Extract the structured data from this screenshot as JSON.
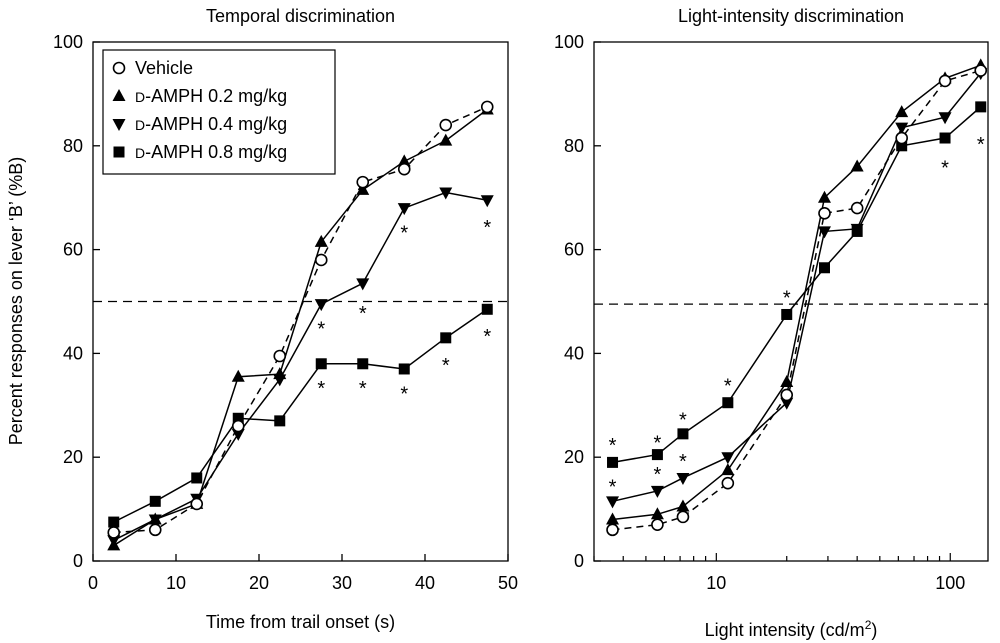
{
  "ylabel": "Percent responses on lever ‘B’ (%B)",
  "legend": {
    "placement": "top-left",
    "entries": [
      {
        "prefix": "",
        "label": "Vehicle",
        "marker": "circle-open"
      },
      {
        "prefix": "D",
        "label": "-AMPH 0.2 mg/kg",
        "marker": "triangle-up"
      },
      {
        "prefix": "D",
        "label": "-AMPH 0.4 mg/kg",
        "marker": "triangle-down"
      },
      {
        "prefix": "D",
        "label": "-AMPH 0.8 mg/kg",
        "marker": "square"
      }
    ]
  },
  "chart_data": [
    {
      "type": "line",
      "title": "Temporal discrimination",
      "xlabel": "Time from trail onset (s)",
      "xscale": "linear",
      "xlim": [
        0,
        50
      ],
      "ylim": [
        0,
        100
      ],
      "xticks": [
        0,
        10,
        20,
        30,
        40,
        50
      ],
      "yticks": [
        0,
        20,
        40,
        60,
        80,
        100
      ],
      "reference_line_y": 50,
      "x": [
        2.5,
        7.5,
        12.5,
        17.5,
        22.5,
        27.5,
        32.5,
        37.5,
        42.5,
        47.5
      ],
      "series": [
        {
          "name": "Vehicle",
          "marker": "circle-open",
          "dash": true,
          "values": [
            5.5,
            6,
            11,
            26,
            39.5,
            58,
            73,
            75.5,
            84,
            87.5
          ]
        },
        {
          "name": "D-AMPH 0.2 mg/kg",
          "marker": "triangle-up",
          "dash": false,
          "values": [
            3,
            8,
            11,
            35.5,
            36,
            61.5,
            71.5,
            77,
            81,
            87
          ]
        },
        {
          "name": "D-AMPH 0.4 mg/kg",
          "marker": "triangle-down",
          "dash": false,
          "values": [
            4,
            8,
            12,
            24.5,
            35,
            49.5,
            53.5,
            68,
            71,
            69.5
          ]
        },
        {
          "name": "D-AMPH 0.8 mg/kg",
          "marker": "square",
          "dash": false,
          "values": [
            7.5,
            11.5,
            16,
            27.5,
            27,
            38,
            38,
            37,
            43,
            48.5
          ]
        }
      ],
      "annotations": [
        {
          "text": "*",
          "x": 27.5,
          "y": 45
        },
        {
          "text": "*",
          "x": 27.5,
          "y": 33.5
        },
        {
          "text": "*",
          "x": 32.5,
          "y": 48
        },
        {
          "text": "*",
          "x": 32.5,
          "y": 33.5
        },
        {
          "text": "*",
          "x": 37.5,
          "y": 63.5
        },
        {
          "text": "*",
          "x": 37.5,
          "y": 32.5
        },
        {
          "text": "*",
          "x": 42.5,
          "y": 38
        },
        {
          "text": "*",
          "x": 47.5,
          "y": 64.5
        },
        {
          "text": "*",
          "x": 47.5,
          "y": 43.5
        }
      ]
    },
    {
      "type": "line",
      "title": "Light-intensity discrimination",
      "xlabel": "Light intensity (cd/m",
      "xlabel_superscript": "2",
      "xlabel_suffix": ")",
      "xscale": "log",
      "xlim": [
        3,
        145
      ],
      "ylim": [
        0,
        100
      ],
      "xticks": [
        10,
        100
      ],
      "yticks": [
        0,
        20,
        40,
        60,
        80,
        100
      ],
      "reference_line_y": 49.5,
      "x": [
        3.6,
        5.6,
        7.2,
        11.2,
        20,
        29,
        40,
        62,
        95,
        135
      ],
      "series": [
        {
          "name": "Vehicle",
          "marker": "circle-open",
          "dash": true,
          "values": [
            6,
            7,
            8.5,
            15,
            32,
            67,
            68,
            81.5,
            92.5,
            94.5
          ]
        },
        {
          "name": "D-AMPH 0.2 mg/kg",
          "marker": "triangle-up",
          "dash": false,
          "values": [
            8,
            9,
            10.5,
            17.5,
            34.5,
            70,
            76,
            86.5,
            93,
            95.5
          ]
        },
        {
          "name": "D-AMPH 0.4 mg/kg",
          "marker": "triangle-down",
          "dash": false,
          "values": [
            11.5,
            13.5,
            16,
            20,
            30.5,
            63.5,
            64,
            83.5,
            85.5,
            94
          ]
        },
        {
          "name": "D-AMPH 0.8 mg/kg",
          "marker": "square",
          "dash": false,
          "values": [
            19,
            20.5,
            24.5,
            30.5,
            47.5,
            56.5,
            63.5,
            80,
            81.5,
            87.5
          ]
        }
      ],
      "annotations": [
        {
          "text": "*",
          "x": 3.6,
          "y": 22.5
        },
        {
          "text": "*",
          "x": 3.6,
          "y": 14.5
        },
        {
          "text": "*",
          "x": 5.6,
          "y": 23
        },
        {
          "text": "*",
          "x": 5.6,
          "y": 17
        },
        {
          "text": "*",
          "x": 7.2,
          "y": 27.5
        },
        {
          "text": "*",
          "x": 7.2,
          "y": 19.5
        },
        {
          "text": "*",
          "x": 11.2,
          "y": 34
        },
        {
          "text": "*",
          "x": 20,
          "y": 51
        },
        {
          "text": "*",
          "x": 95,
          "y": 76
        },
        {
          "text": "*",
          "x": 135,
          "y": 80.5
        }
      ]
    }
  ]
}
